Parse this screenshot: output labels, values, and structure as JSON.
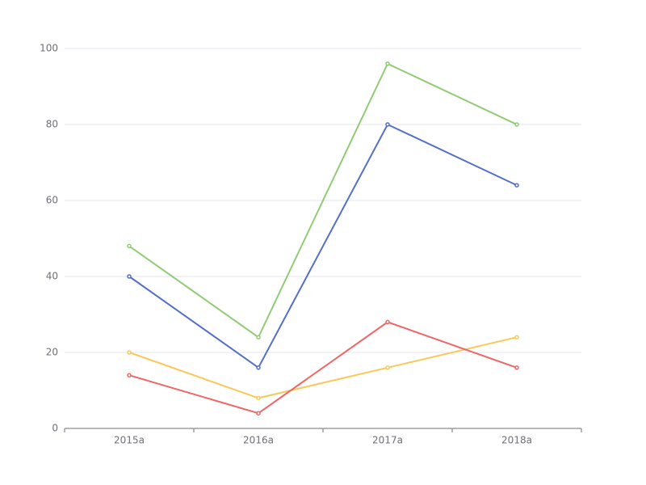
{
  "chart_data": {
    "type": "line",
    "categories": [
      "2015a",
      "2016a",
      "2017a",
      "2018a"
    ],
    "series": [
      {
        "color": "#5470c6",
        "values": [
          40,
          16,
          80,
          64
        ]
      },
      {
        "color": "#91cc75",
        "values": [
          48,
          24,
          96,
          80
        ]
      },
      {
        "color": "#fac858",
        "values": [
          20,
          8,
          16,
          24
        ]
      },
      {
        "color": "#ee6666",
        "values": [
          14,
          4,
          28,
          16
        ]
      }
    ],
    "ylim": [
      0,
      100
    ],
    "yticks": [
      0,
      20,
      40,
      60,
      80,
      100
    ],
    "grid": true
  }
}
